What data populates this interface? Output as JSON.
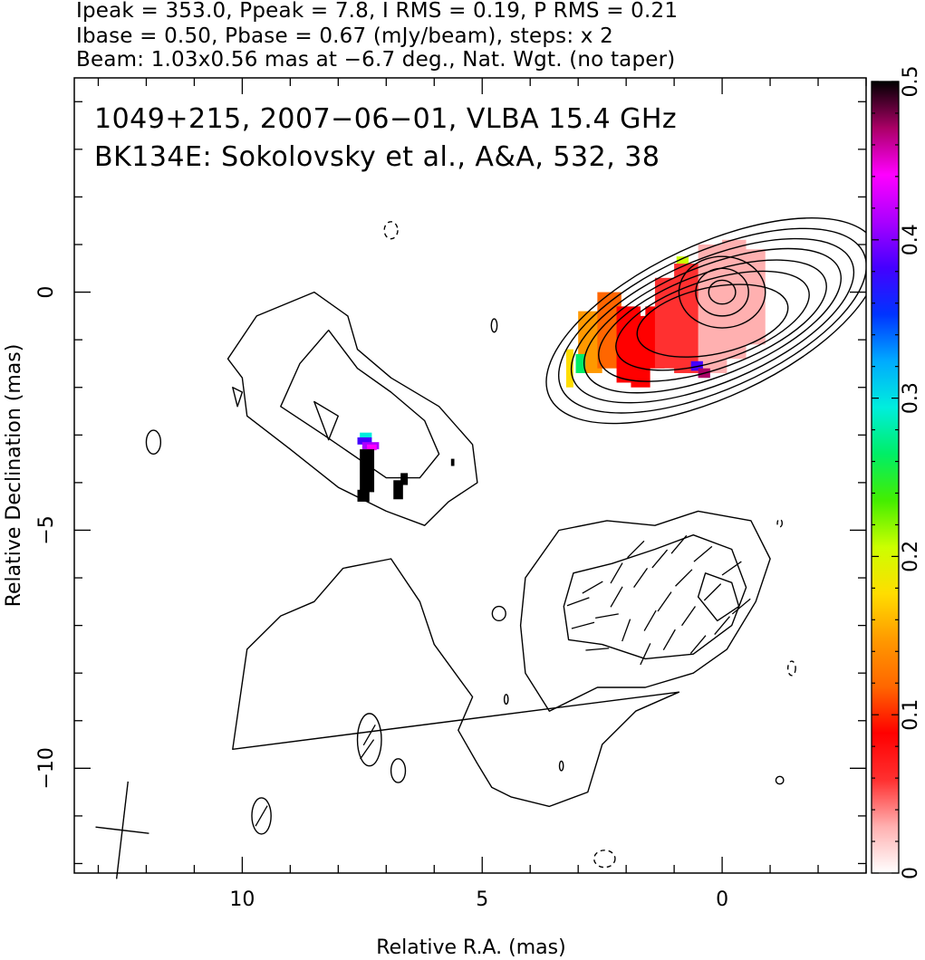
{
  "header": {
    "line1": "Ipeak = 353.0, Ppeak = 7.8, I RMS = 0.19, P RMS = 0.21",
    "line2": "Ibase = 0.50, Pbase = 0.67 (mJy/beam), steps: x 2",
    "line3": "Beam: 1.03x0.56 mas at −6.7 deg., Nat. Wgt. (no taper)"
  },
  "annotations": {
    "line1": "1049+215, 2007−06−01, VLBA 15.4 GHz",
    "line2": "BK134E: Sokolovsky et al., A&A, 532, 38"
  },
  "chart_data": {
    "type": "heatmap",
    "xlabel": "Relative R.A. (mas)",
    "ylabel": "Relative Declination (mas)",
    "xlim": [
      13.5,
      -3.0
    ],
    "ylim": [
      -12.2,
      4.5
    ],
    "x_ticks": [
      10,
      5,
      0
    ],
    "x_tick_labels": [
      "10",
      "5",
      "0"
    ],
    "y_ticks": [
      0,
      -5,
      -10
    ],
    "y_tick_labels": [
      "0",
      "−5",
      "−10"
    ],
    "colorbar": {
      "min": 0,
      "max": 0.5,
      "ticks": [
        0,
        0.1,
        0.2,
        0.3,
        0.4,
        0.5
      ],
      "tick_labels": [
        "0",
        "0.1",
        "0.2",
        "0.3",
        "0.4",
        "0.5"
      ],
      "colormap": [
        "#ffffff",
        "#ffb0b0",
        "#ff3030",
        "#ff0000",
        "#ff6600",
        "#ff9900",
        "#ffdd00",
        "#ccff00",
        "#44ee00",
        "#00ee66",
        "#00eedd",
        "#00aaff",
        "#0033ff",
        "#4400ff",
        "#aa00ff",
        "#ff00ff",
        "#aa0066",
        "#000000"
      ]
    },
    "beam": {
      "major_mas": 1.03,
      "minor_mas": 0.56,
      "pa_deg": -6.7,
      "center": [
        12.5,
        -11.3
      ]
    },
    "contour_groups": [
      {
        "name": "core",
        "center": [
          0.2,
          -0.6
        ],
        "levels": [
          {
            "rx": 3.75,
            "ry": 1.6,
            "angle": -25
          },
          {
            "rx": 3.45,
            "ry": 1.45,
            "angle": -24
          },
          {
            "rx": 3.15,
            "ry": 1.3,
            "angle": -23
          },
          {
            "rx": 2.85,
            "ry": 1.15,
            "angle": -22
          },
          {
            "rx": 2.5,
            "ry": 1.0,
            "angle": -20
          },
          {
            "rx": 2.1,
            "ry": 0.85,
            "angle": -18
          },
          {
            "rx": 1.6,
            "ry": 0.7,
            "angle": -12
          }
        ],
        "inner": [
          {
            "cx": 0.0,
            "cy": 0.0,
            "rx": 0.9,
            "ry": 0.75
          },
          {
            "cx": 0.0,
            "cy": 0.0,
            "rx": 0.55,
            "ry": 0.5
          },
          {
            "cx": 0.0,
            "cy": 0.0,
            "rx": 0.28,
            "ry": 0.25
          }
        ]
      },
      {
        "name": "jet-left",
        "polys": [
          [
            [
              10.0,
              -1.8
            ],
            [
              10.3,
              -1.4
            ],
            [
              9.7,
              -0.5
            ],
            [
              8.5,
              0.0
            ],
            [
              7.8,
              -0.5
            ],
            [
              7.6,
              -1.2
            ],
            [
              6.9,
              -1.8
            ],
            [
              5.9,
              -2.4
            ],
            [
              5.2,
              -3.2
            ],
            [
              5.1,
              -4.0
            ],
            [
              5.7,
              -4.4
            ],
            [
              6.2,
              -4.9
            ],
            [
              7.0,
              -4.6
            ],
            [
              8.0,
              -4.1
            ],
            [
              9.0,
              -3.3
            ],
            [
              9.9,
              -2.6
            ]
          ],
          [
            [
              8.2,
              -0.8
            ],
            [
              7.6,
              -1.6
            ],
            [
              6.9,
              -2.1
            ],
            [
              6.2,
              -2.7
            ],
            [
              5.9,
              -3.4
            ],
            [
              6.3,
              -3.9
            ],
            [
              7.0,
              -3.9
            ],
            [
              8.3,
              -3.0
            ],
            [
              9.2,
              -2.4
            ],
            [
              8.8,
              -1.5
            ]
          ],
          [
            [
              8.5,
              -2.3
            ],
            [
              8.2,
              -3.1
            ],
            [
              8.0,
              -2.6
            ]
          ],
          [
            [
              10.2,
              -2.0
            ],
            [
              10.1,
              -2.4
            ],
            [
              10.0,
              -2.1
            ]
          ]
        ]
      },
      {
        "name": "pol-core",
        "polys": [
          [
            [
              4.2,
              -7.0
            ],
            [
              4.1,
              -6.0
            ],
            [
              3.4,
              -5.0
            ],
            [
              2.4,
              -4.8
            ],
            [
              1.4,
              -4.9
            ],
            [
              0.5,
              -4.6
            ],
            [
              -0.6,
              -4.8
            ],
            [
              -1.0,
              -5.6
            ],
            [
              -0.7,
              -6.5
            ],
            [
              -0.1,
              -7.5
            ],
            [
              0.6,
              -8.0
            ],
            [
              1.6,
              -8.3
            ],
            [
              2.6,
              -8.3
            ],
            [
              3.6,
              -8.8
            ],
            [
              4.1,
              -8.0
            ]
          ],
          [
            [
              3.3,
              -6.6
            ],
            [
              3.1,
              -5.9
            ],
            [
              2.3,
              -5.7
            ],
            [
              1.4,
              -5.4
            ],
            [
              0.6,
              -5.1
            ],
            [
              -0.2,
              -5.4
            ],
            [
              -0.5,
              -6.2
            ],
            [
              -0.2,
              -7.0
            ],
            [
              0.6,
              -7.6
            ],
            [
              1.6,
              -7.7
            ],
            [
              2.5,
              -7.4
            ],
            [
              3.2,
              -7.3
            ]
          ],
          [
            [
              -0.2,
              -6.1
            ],
            [
              -0.35,
              -6.6
            ],
            [
              0.1,
              -6.9
            ],
            [
              0.5,
              -6.4
            ],
            [
              0.35,
              -5.9
            ]
          ]
        ]
      },
      {
        "name": "pol-jet",
        "polys": [
          [
            [
              10.2,
              -9.6
            ],
            [
              9.9,
              -7.5
            ],
            [
              9.2,
              -6.8
            ],
            [
              8.5,
              -6.5
            ],
            [
              7.9,
              -5.8
            ],
            [
              6.9,
              -5.6
            ],
            [
              6.3,
              -6.5
            ],
            [
              6.0,
              -7.4
            ],
            [
              5.2,
              -8.5
            ],
            [
              5.5,
              -9.2
            ],
            [
              5.1,
              -9.9
            ],
            [
              4.8,
              -10.4
            ],
            [
              4.4,
              -10.6
            ],
            [
              3.6,
              -10.8
            ],
            [
              2.8,
              -10.5
            ],
            [
              2.5,
              -9.5
            ],
            [
              1.8,
              -8.8
            ],
            [
              0.9,
              -8.4
            ]
          ]
        ]
      }
    ],
    "ellipses": [
      {
        "cx": 7.35,
        "cy": -9.4,
        "rx": 0.25,
        "ry": 0.55
      },
      {
        "cx": 6.75,
        "cy": -10.05,
        "rx": 0.15,
        "ry": 0.25
      },
      {
        "cx": 9.6,
        "cy": -11.0,
        "rx": 0.2,
        "ry": 0.38
      },
      {
        "cx": 11.85,
        "cy": -3.15,
        "rx": 0.15,
        "ry": 0.25
      },
      {
        "cx": 4.75,
        "cy": -0.7,
        "rx": 0.06,
        "ry": 0.14
      },
      {
        "cx": 4.65,
        "cy": -6.75,
        "rx": 0.14,
        "ry": 0.15
      },
      {
        "cx": 4.5,
        "cy": -8.55,
        "rx": 0.04,
        "ry": 0.1
      },
      {
        "cx": 3.35,
        "cy": -9.95,
        "rx": 0.04,
        "ry": 0.1
      },
      {
        "cx": -1.2,
        "cy": -10.25,
        "rx": 0.08,
        "ry": 0.08
      }
    ],
    "dashed_ellipses": [
      {
        "cx": 6.9,
        "cy": 1.3,
        "rx": 0.14,
        "ry": 0.18
      },
      {
        "cx": -1.45,
        "cy": -7.9,
        "rx": 0.08,
        "ry": 0.15
      },
      {
        "cx": 2.45,
        "cy": -11.9,
        "rx": 0.22,
        "ry": 0.18
      },
      {
        "cx": -1.2,
        "cy": -4.85,
        "rx": 0.05,
        "ry": 0.08
      }
    ],
    "fractional_polarization": [
      {
        "x": 3.0,
        "y": -0.4,
        "w": 0.5,
        "h": 1.3,
        "v": 0.16
      },
      {
        "x": 2.6,
        "y": 0.0,
        "w": 0.5,
        "h": 1.6,
        "v": 0.12
      },
      {
        "x": 2.2,
        "y": -0.3,
        "w": 0.5,
        "h": 1.6,
        "v": 0.1
      },
      {
        "x": 1.9,
        "y": -0.5,
        "w": 0.4,
        "h": 1.5,
        "v": 0.09
      },
      {
        "x": 1.6,
        "y": -0.3,
        "w": 0.4,
        "h": 1.3,
        "v": 0.08
      },
      {
        "x": 1.4,
        "y": 0.3,
        "w": 0.5,
        "h": 1.9,
        "v": 0.07
      },
      {
        "x": 1.0,
        "y": 0.6,
        "w": 0.6,
        "h": 2.3,
        "v": 0.05
      },
      {
        "x": 0.5,
        "y": 1.0,
        "w": 0.6,
        "h": 2.7,
        "v": 0.04
      },
      {
        "x": 0.0,
        "y": 1.1,
        "w": 0.5,
        "h": 2.5,
        "v": 0.03
      },
      {
        "x": -0.4,
        "y": 0.9,
        "w": 0.5,
        "h": 2.0,
        "v": 0.035
      },
      {
        "x": 3.25,
        "y": -1.2,
        "w": 0.15,
        "h": 0.8,
        "v": 0.17
      },
      {
        "x": 3.05,
        "y": -1.3,
        "w": 0.2,
        "h": 0.4,
        "v": 0.25
      },
      {
        "x": 0.95,
        "y": 0.75,
        "w": 0.25,
        "h": 0.15,
        "v": 0.22
      },
      {
        "x": 0.65,
        "y": -1.45,
        "w": 0.25,
        "h": 0.2,
        "v": 0.38
      },
      {
        "x": 0.5,
        "y": -1.6,
        "w": 0.25,
        "h": 0.2,
        "v": 0.48
      },
      {
        "x": 7.55,
        "y": -2.95,
        "w": 0.25,
        "h": 0.15,
        "v": 0.3
      },
      {
        "x": 7.6,
        "y": -3.05,
        "w": 0.3,
        "h": 0.15,
        "v": 0.38
      },
      {
        "x": 7.5,
        "y": -3.15,
        "w": 0.35,
        "h": 0.15,
        "v": 0.42
      },
      {
        "x": 7.4,
        "y": -3.2,
        "w": 0.2,
        "h": 0.12,
        "v": 0.45
      },
      {
        "x": 7.55,
        "y": -3.3,
        "w": 0.3,
        "h": 0.9,
        "v": 0.5
      },
      {
        "x": 7.6,
        "y": -4.15,
        "w": 0.25,
        "h": 0.25,
        "v": 0.5
      },
      {
        "x": 6.85,
        "y": -3.95,
        "w": 0.2,
        "h": 0.4,
        "v": 0.5
      },
      {
        "x": 6.7,
        "y": -3.8,
        "w": 0.15,
        "h": 0.25,
        "v": 0.5
      },
      {
        "x": 5.65,
        "y": -3.5,
        "w": 0.07,
        "h": 0.15,
        "v": 0.5
      }
    ],
    "evpa_vectors": [
      {
        "x": 3.0,
        "y": -6.5,
        "a": 20
      },
      {
        "x": 2.9,
        "y": -7.0,
        "a": 15
      },
      {
        "x": 2.7,
        "y": -6.2,
        "a": 30
      },
      {
        "x": 2.4,
        "y": -6.8,
        "a": 10
      },
      {
        "x": 2.6,
        "y": -7.5,
        "a": 5
      },
      {
        "x": 2.2,
        "y": -6.4,
        "a": 60
      },
      {
        "x": 2.0,
        "y": -7.1,
        "a": 70
      },
      {
        "x": 1.7,
        "y": -6.0,
        "a": 55
      },
      {
        "x": 1.5,
        "y": -6.9,
        "a": 60
      },
      {
        "x": 1.3,
        "y": -5.6,
        "a": 50
      },
      {
        "x": 1.2,
        "y": -6.5,
        "a": 55
      },
      {
        "x": 1.1,
        "y": -7.3,
        "a": 60
      },
      {
        "x": 0.9,
        "y": -5.3,
        "a": 50
      },
      {
        "x": 0.8,
        "y": -6.0,
        "a": 45
      },
      {
        "x": 0.7,
        "y": -6.8,
        "a": 55
      },
      {
        "x": 0.5,
        "y": -7.4,
        "a": 50
      },
      {
        "x": 0.4,
        "y": -5.5,
        "a": 40
      },
      {
        "x": 0.2,
        "y": -6.3,
        "a": 45
      },
      {
        "x": 0.0,
        "y": -7.0,
        "a": 50
      },
      {
        "x": -0.2,
        "y": -5.8,
        "a": 35
      },
      {
        "x": -0.4,
        "y": -6.6,
        "a": 40
      },
      {
        "x": 1.8,
        "y": -5.4,
        "a": 45
      },
      {
        "x": 2.2,
        "y": -5.9,
        "a": 60
      },
      {
        "x": 1.6,
        "y": -7.6,
        "a": 65
      },
      {
        "x": 7.35,
        "y": -9.3,
        "a": 60
      },
      {
        "x": 7.4,
        "y": -9.6,
        "a": 55
      },
      {
        "x": 9.6,
        "y": -11.0,
        "a": 60
      }
    ]
  }
}
